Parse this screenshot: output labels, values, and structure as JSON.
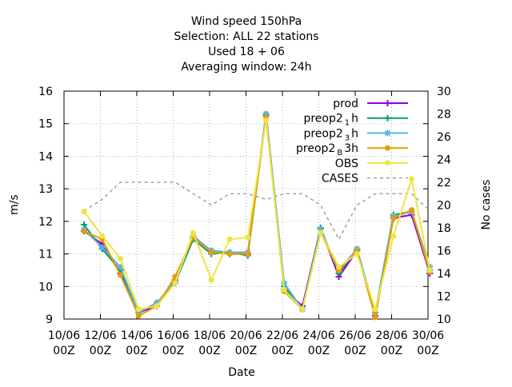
{
  "chart_data": {
    "type": "line",
    "title_lines": [
      "Wind speed 150hPa",
      "Selection: ALL      22 stations",
      "Used  18 + 06",
      "Averaging window: 24h"
    ],
    "xlabel": "Date",
    "ylabel": "m/s",
    "y2label": "No cases",
    "ylim": [
      9,
      16
    ],
    "y2lim": [
      10,
      30
    ],
    "yticks": [
      "9",
      "10",
      "11",
      "12",
      "13",
      "14",
      "15",
      "16"
    ],
    "y2ticks": [
      "10",
      "12",
      "14",
      "16",
      "18",
      "20",
      "22",
      "24",
      "26",
      "28",
      "30"
    ],
    "xticks": [
      {
        "day": 0,
        "line1": "10/06",
        "line2": "00Z"
      },
      {
        "day": 2,
        "line1": "12/06",
        "line2": "00Z"
      },
      {
        "day": 4,
        "line1": "14/06",
        "line2": "00Z"
      },
      {
        "day": 6,
        "line1": "16/06",
        "line2": "00Z"
      },
      {
        "day": 8,
        "line1": "18/06",
        "line2": "00Z"
      },
      {
        "day": 10,
        "line1": "20/06",
        "line2": "00Z"
      },
      {
        "day": 12,
        "line1": "22/06",
        "line2": "00Z"
      },
      {
        "day": 14,
        "line1": "24/06",
        "line2": "00Z"
      },
      {
        "day": 16,
        "line1": "26/06",
        "line2": "00Z"
      },
      {
        "day": 18,
        "line1": "28/06",
        "line2": "00Z"
      },
      {
        "day": 20,
        "line1": "30/06",
        "line2": "00Z"
      }
    ],
    "xlim": [
      0,
      20
    ],
    "x": [
      1.1,
      2.1,
      3.1,
      4.1,
      5.1,
      6.1,
      7.1,
      8.1,
      9.1,
      10.1,
      11.1,
      12.1,
      13.1,
      14.1,
      15.1,
      16.1,
      17.1,
      18.1,
      19.1,
      20.1
    ],
    "grid": true,
    "legend_position": "top-right",
    "series": [
      {
        "legend": "prod",
        "color": "#9400d3",
        "marker": "plus",
        "axis": "y",
        "values": [
          11.7,
          11.3,
          10.4,
          9.2,
          9.4,
          10.2,
          11.5,
          11.1,
          11.0,
          11.0,
          15.3,
          9.9,
          9.4,
          11.8,
          10.3,
          11.1,
          9.1,
          12.1,
          12.2,
          10.4
        ]
      },
      {
        "legend": "preop2 1h",
        "legend_base": "preop2",
        "legend_sub": "1",
        "legend_tail": "h",
        "color": "#009e73",
        "marker": "plus",
        "axis": "y",
        "values": [
          11.9,
          11.15,
          10.5,
          9.2,
          9.5,
          10.1,
          11.45,
          11.0,
          11.05,
          10.95,
          15.25,
          10.0,
          9.3,
          11.8,
          10.4,
          11.15,
          9.2,
          12.2,
          12.3,
          10.5
        ]
      },
      {
        "legend": "preop2 3h",
        "legend_base": "preop2",
        "legend_sub": "3",
        "legend_tail": "h",
        "color": "#56b4e9",
        "marker": "star",
        "axis": "y",
        "values": [
          11.75,
          11.2,
          10.6,
          9.2,
          9.5,
          10.15,
          11.55,
          11.1,
          11.05,
          11.05,
          15.3,
          10.1,
          9.3,
          11.75,
          10.5,
          11.15,
          9.2,
          12.15,
          12.3,
          10.6
        ]
      },
      {
        "legend": "preop2 B3h",
        "legend_base": "preop2",
        "legend_sub": "B",
        "legend_tail": "3h",
        "color": "#e69f00",
        "marker": "circle",
        "axis": "y",
        "values": [
          11.7,
          11.45,
          10.35,
          9.1,
          9.4,
          10.3,
          11.5,
          11.05,
          11.0,
          11.0,
          15.2,
          9.85,
          9.3,
          11.65,
          10.5,
          11.1,
          9.05,
          12.1,
          12.35,
          10.45
        ]
      },
      {
        "legend": "OBS",
        "color": "#f0e442",
        "marker": "circle",
        "axis": "y",
        "values": [
          12.3,
          11.55,
          10.85,
          9.3,
          9.4,
          10.1,
          11.65,
          10.2,
          11.45,
          11.5,
          15.1,
          9.9,
          9.3,
          11.65,
          10.6,
          11.0,
          9.3,
          11.55,
          13.3,
          10.5
        ]
      },
      {
        "legend": "CASES",
        "color": "#a0a0a0",
        "marker": "none",
        "dashed": true,
        "axis": "y2",
        "values": [
          19.5,
          20.5,
          22.0,
          22.0,
          22.0,
          22.0,
          21.0,
          20.0,
          21.0,
          21.0,
          20.5,
          21.0,
          21.0,
          20.0,
          17.0,
          20.0,
          21.0,
          21.0,
          21.0,
          19.5
        ]
      }
    ]
  }
}
